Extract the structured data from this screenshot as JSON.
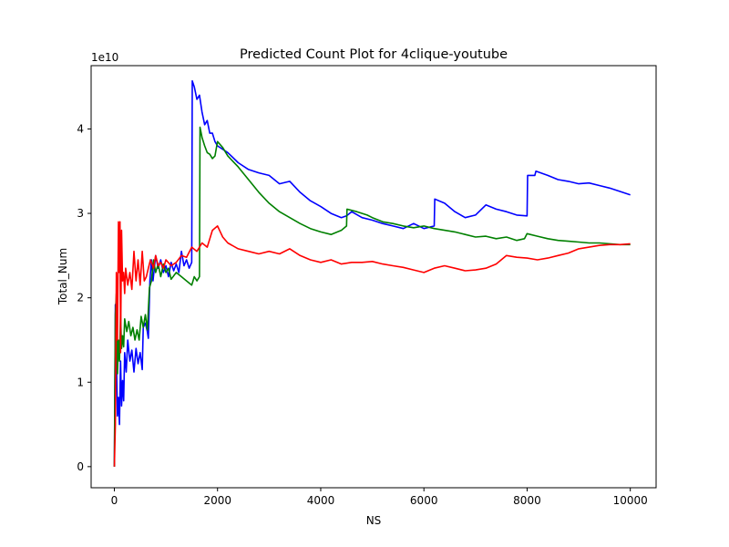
{
  "chart_data": {
    "type": "line",
    "title": "Predicted Count Plot for 4clique-youtube",
    "xlabel": "NS",
    "ylabel": "Total_Num",
    "y_multiplier_label": "1e10",
    "xlim": [
      -450,
      10500
    ],
    "ylim": [
      -0.25,
      4.75
    ],
    "x_ticks": [
      0,
      2000,
      4000,
      6000,
      8000,
      10000
    ],
    "x_tick_labels": [
      "0",
      "2000",
      "4000",
      "6000",
      "8000",
      "10000"
    ],
    "y_ticks": [
      0,
      1,
      2,
      3,
      4
    ],
    "y_tick_labels": [
      "0",
      "1",
      "2",
      "3",
      "4"
    ],
    "grid": false,
    "series": [
      {
        "color": "#0000ff",
        "points": [
          [
            0,
            0
          ],
          [
            20,
            1.92
          ],
          [
            40,
            1.3
          ],
          [
            60,
            0.6
          ],
          [
            80,
            0.82
          ],
          [
            100,
            0.5
          ],
          [
            120,
            1.25
          ],
          [
            140,
            0.72
          ],
          [
            160,
            1.02
          ],
          [
            180,
            0.78
          ],
          [
            200,
            1.35
          ],
          [
            230,
            1.12
          ],
          [
            260,
            1.5
          ],
          [
            300,
            1.25
          ],
          [
            340,
            1.38
          ],
          [
            380,
            1.12
          ],
          [
            420,
            1.4
          ],
          [
            460,
            1.22
          ],
          [
            500,
            1.35
          ],
          [
            540,
            1.15
          ],
          [
            560,
            1.65
          ],
          [
            600,
            1.7
          ],
          [
            640,
            1.6
          ],
          [
            660,
            1.52
          ],
          [
            690,
            2.2
          ],
          [
            720,
            2.45
          ],
          [
            750,
            2.2
          ],
          [
            800,
            2.5
          ],
          [
            850,
            2.35
          ],
          [
            900,
            2.45
          ],
          [
            950,
            2.3
          ],
          [
            1000,
            2.38
          ],
          [
            1050,
            2.25
          ],
          [
            1100,
            2.42
          ],
          [
            1150,
            2.32
          ],
          [
            1200,
            2.4
          ],
          [
            1250,
            2.3
          ],
          [
            1300,
            2.55
          ],
          [
            1350,
            2.38
          ],
          [
            1400,
            2.45
          ],
          [
            1450,
            2.35
          ],
          [
            1500,
            2.42
          ],
          [
            1510,
            4.57
          ],
          [
            1550,
            4.5
          ],
          [
            1600,
            4.35
          ],
          [
            1650,
            4.4
          ],
          [
            1700,
            4.2
          ],
          [
            1750,
            4.05
          ],
          [
            1800,
            4.1
          ],
          [
            1850,
            3.95
          ],
          [
            1900,
            3.95
          ],
          [
            1950,
            3.85
          ],
          [
            2000,
            3.8
          ],
          [
            2200,
            3.72
          ],
          [
            2400,
            3.6
          ],
          [
            2600,
            3.52
          ],
          [
            2800,
            3.48
          ],
          [
            3000,
            3.45
          ],
          [
            3200,
            3.35
          ],
          [
            3400,
            3.38
          ],
          [
            3600,
            3.25
          ],
          [
            3800,
            3.15
          ],
          [
            4000,
            3.08
          ],
          [
            4200,
            3.0
          ],
          [
            4400,
            2.95
          ],
          [
            4500,
            2.97
          ],
          [
            4600,
            3.02
          ],
          [
            4800,
            2.95
          ],
          [
            5000,
            2.92
          ],
          [
            5200,
            2.88
          ],
          [
            5400,
            2.85
          ],
          [
            5600,
            2.82
          ],
          [
            5800,
            2.88
          ],
          [
            6000,
            2.82
          ],
          [
            6200,
            2.85
          ],
          [
            6210,
            3.17
          ],
          [
            6400,
            3.12
          ],
          [
            6600,
            3.02
          ],
          [
            6800,
            2.95
          ],
          [
            7000,
            2.98
          ],
          [
            7200,
            3.1
          ],
          [
            7400,
            3.05
          ],
          [
            7600,
            3.02
          ],
          [
            7800,
            2.98
          ],
          [
            8000,
            2.97
          ],
          [
            8010,
            3.45
          ],
          [
            8150,
            3.45
          ],
          [
            8170,
            3.5
          ],
          [
            8400,
            3.45
          ],
          [
            8600,
            3.4
          ],
          [
            8800,
            3.38
          ],
          [
            9000,
            3.35
          ],
          [
            9200,
            3.36
          ],
          [
            9400,
            3.33
          ],
          [
            9600,
            3.3
          ],
          [
            9800,
            3.26
          ],
          [
            10000,
            3.22
          ]
        ]
      },
      {
        "color": "#008000",
        "points": [
          [
            0,
            0
          ],
          [
            20,
            1.8
          ],
          [
            40,
            2.05
          ],
          [
            60,
            1.1
          ],
          [
            80,
            1.5
          ],
          [
            100,
            1.25
          ],
          [
            120,
            1.8
          ],
          [
            140,
            1.4
          ],
          [
            160,
            1.55
          ],
          [
            180,
            1.42
          ],
          [
            200,
            1.75
          ],
          [
            240,
            1.6
          ],
          [
            280,
            1.72
          ],
          [
            320,
            1.55
          ],
          [
            360,
            1.65
          ],
          [
            400,
            1.5
          ],
          [
            440,
            1.62
          ],
          [
            480,
            1.5
          ],
          [
            520,
            1.78
          ],
          [
            560,
            1.65
          ],
          [
            600,
            1.8
          ],
          [
            640,
            1.62
          ],
          [
            680,
            2.12
          ],
          [
            720,
            2.2
          ],
          [
            760,
            2.45
          ],
          [
            800,
            2.3
          ],
          [
            850,
            2.4
          ],
          [
            900,
            2.25
          ],
          [
            950,
            2.4
          ],
          [
            1000,
            2.3
          ],
          [
            1050,
            2.35
          ],
          [
            1100,
            2.22
          ],
          [
            1200,
            2.3
          ],
          [
            1300,
            2.25
          ],
          [
            1400,
            2.2
          ],
          [
            1500,
            2.15
          ],
          [
            1550,
            2.25
          ],
          [
            1600,
            2.2
          ],
          [
            1650,
            2.25
          ],
          [
            1660,
            4.02
          ],
          [
            1700,
            3.9
          ],
          [
            1750,
            3.8
          ],
          [
            1800,
            3.72
          ],
          [
            1850,
            3.7
          ],
          [
            1900,
            3.65
          ],
          [
            1950,
            3.68
          ],
          [
            2000,
            3.85
          ],
          [
            2100,
            3.78
          ],
          [
            2200,
            3.68
          ],
          [
            2400,
            3.55
          ],
          [
            2600,
            3.4
          ],
          [
            2800,
            3.25
          ],
          [
            3000,
            3.12
          ],
          [
            3200,
            3.02
          ],
          [
            3400,
            2.95
          ],
          [
            3600,
            2.88
          ],
          [
            3800,
            2.82
          ],
          [
            4000,
            2.78
          ],
          [
            4200,
            2.75
          ],
          [
            4400,
            2.8
          ],
          [
            4500,
            2.85
          ],
          [
            4510,
            3.05
          ],
          [
            4700,
            3.02
          ],
          [
            4900,
            2.98
          ],
          [
            5000,
            2.95
          ],
          [
            5200,
            2.9
          ],
          [
            5400,
            2.88
          ],
          [
            5600,
            2.85
          ],
          [
            5800,
            2.83
          ],
          [
            6000,
            2.85
          ],
          [
            6200,
            2.82
          ],
          [
            6400,
            2.8
          ],
          [
            6600,
            2.78
          ],
          [
            6800,
            2.75
          ],
          [
            7000,
            2.72
          ],
          [
            7200,
            2.73
          ],
          [
            7400,
            2.7
          ],
          [
            7600,
            2.72
          ],
          [
            7800,
            2.68
          ],
          [
            7950,
            2.7
          ],
          [
            8000,
            2.76
          ],
          [
            8200,
            2.73
          ],
          [
            8400,
            2.7
          ],
          [
            8600,
            2.68
          ],
          [
            8800,
            2.67
          ],
          [
            9000,
            2.66
          ],
          [
            9200,
            2.65
          ],
          [
            9400,
            2.65
          ],
          [
            9600,
            2.64
          ],
          [
            9800,
            2.63
          ],
          [
            10000,
            2.63
          ]
        ]
      },
      {
        "color": "#ff0000",
        "points": [
          [
            0,
            0
          ],
          [
            20,
            0.5
          ],
          [
            40,
            2.3
          ],
          [
            60,
            1.5
          ],
          [
            80,
            2.9
          ],
          [
            100,
            2.3
          ],
          [
            110,
            2.9
          ],
          [
            120,
            1.35
          ],
          [
            140,
            2.8
          ],
          [
            160,
            2.2
          ],
          [
            180,
            2.3
          ],
          [
            200,
            2.05
          ],
          [
            220,
            2.35
          ],
          [
            260,
            2.15
          ],
          [
            300,
            2.3
          ],
          [
            340,
            2.1
          ],
          [
            380,
            2.55
          ],
          [
            420,
            2.2
          ],
          [
            460,
            2.45
          ],
          [
            500,
            2.15
          ],
          [
            540,
            2.55
          ],
          [
            580,
            2.2
          ],
          [
            620,
            2.25
          ],
          [
            660,
            2.35
          ],
          [
            700,
            2.45
          ],
          [
            760,
            2.35
          ],
          [
            800,
            2.5
          ],
          [
            850,
            2.38
          ],
          [
            900,
            2.42
          ],
          [
            950,
            2.35
          ],
          [
            1000,
            2.45
          ],
          [
            1100,
            2.38
          ],
          [
            1200,
            2.42
          ],
          [
            1300,
            2.5
          ],
          [
            1400,
            2.48
          ],
          [
            1500,
            2.6
          ],
          [
            1600,
            2.55
          ],
          [
            1700,
            2.65
          ],
          [
            1800,
            2.6
          ],
          [
            1900,
            2.8
          ],
          [
            2000,
            2.85
          ],
          [
            2100,
            2.72
          ],
          [
            2200,
            2.65
          ],
          [
            2400,
            2.58
          ],
          [
            2600,
            2.55
          ],
          [
            2800,
            2.52
          ],
          [
            3000,
            2.55
          ],
          [
            3200,
            2.52
          ],
          [
            3400,
            2.58
          ],
          [
            3600,
            2.5
          ],
          [
            3800,
            2.45
          ],
          [
            4000,
            2.42
          ],
          [
            4200,
            2.45
          ],
          [
            4400,
            2.4
          ],
          [
            4600,
            2.42
          ],
          [
            4800,
            2.42
          ],
          [
            5000,
            2.43
          ],
          [
            5200,
            2.4
          ],
          [
            5400,
            2.38
          ],
          [
            5600,
            2.36
          ],
          [
            5800,
            2.33
          ],
          [
            6000,
            2.3
          ],
          [
            6200,
            2.35
          ],
          [
            6400,
            2.38
          ],
          [
            6600,
            2.35
          ],
          [
            6800,
            2.32
          ],
          [
            7000,
            2.33
          ],
          [
            7200,
            2.35
          ],
          [
            7400,
            2.4
          ],
          [
            7600,
            2.5
          ],
          [
            7800,
            2.48
          ],
          [
            8000,
            2.47
          ],
          [
            8200,
            2.45
          ],
          [
            8400,
            2.47
          ],
          [
            8600,
            2.5
          ],
          [
            8800,
            2.53
          ],
          [
            9000,
            2.58
          ],
          [
            9200,
            2.6
          ],
          [
            9400,
            2.62
          ],
          [
            9600,
            2.63
          ],
          [
            9800,
            2.63
          ],
          [
            10000,
            2.64
          ]
        ]
      }
    ]
  }
}
